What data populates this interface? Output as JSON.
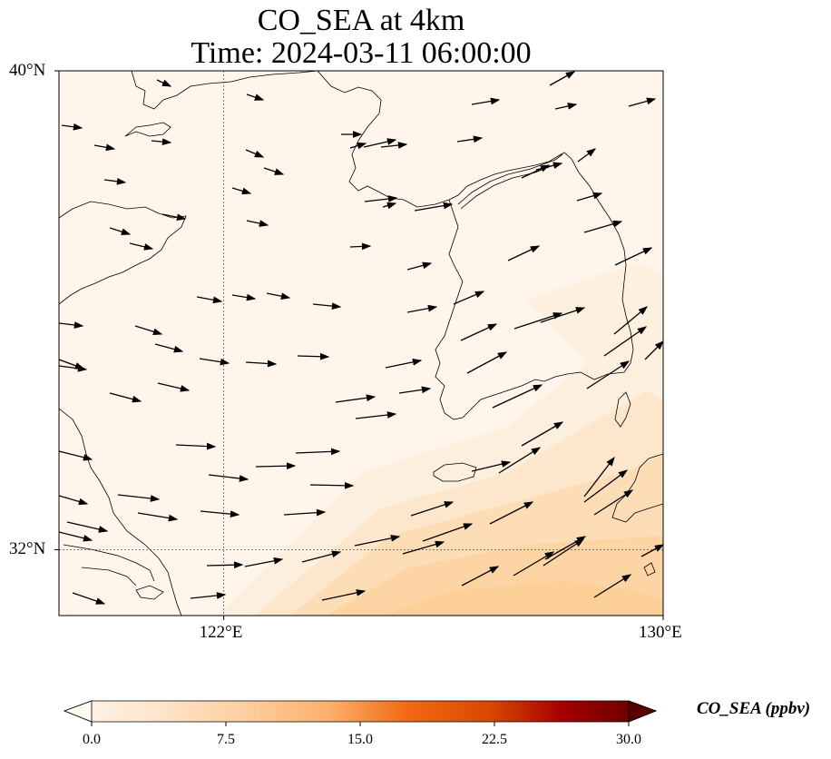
{
  "title": {
    "line1": "CO_SEA at 4km",
    "line2": "Time: 2024-03-11 06:00:00"
  },
  "map": {
    "lat_range": [
      30.9,
      40
    ],
    "lon_range": [
      119,
      130
    ],
    "lat_ticks": [
      {
        "value": 40,
        "label": "40°N"
      },
      {
        "value": 32,
        "label": "32°N"
      }
    ],
    "lon_ticks": [
      {
        "value": 122,
        "label": "122°E"
      },
      {
        "value": 130,
        "label": "130°E"
      }
    ],
    "gridlines": [
      {
        "type": "lat",
        "value": 32
      },
      {
        "type": "lon",
        "value": 122
      }
    ]
  },
  "colorbar": {
    "label": "CO_SEA (ppbv)",
    "min": 0,
    "max": 30,
    "ticks": [
      "0.0",
      "7.5",
      "15.0",
      "22.5",
      "30.0"
    ],
    "colormap": [
      "#fff5eb",
      "#fee6ce",
      "#fdd0a2",
      "#fdae6b",
      "#fd8d3c",
      "#f16913",
      "#d94801",
      "#a60000",
      "#7f0000",
      "#5a0000"
    ],
    "extend": "both"
  },
  "field_colors": {
    "background": "#fff5ea",
    "light": "#fdebd4",
    "medium": "#fdd9ae",
    "strong": "#fdcf98"
  }
}
